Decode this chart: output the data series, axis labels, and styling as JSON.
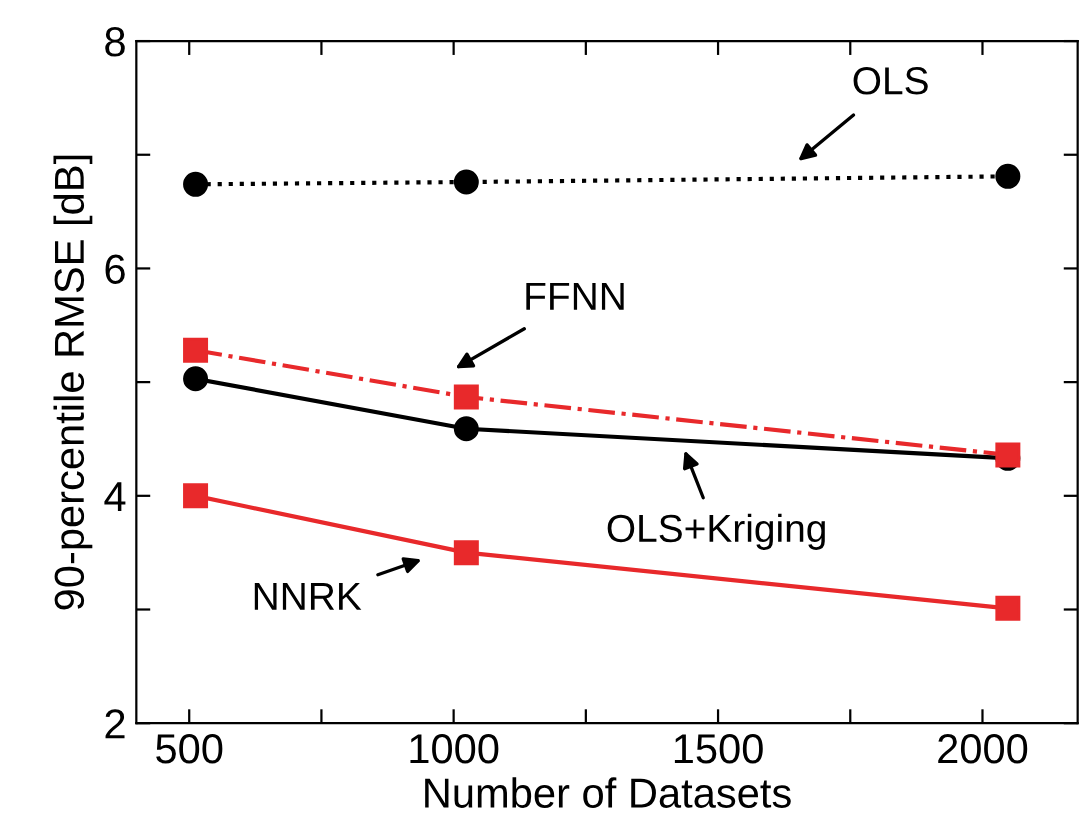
{
  "chart_data": {
    "type": "line",
    "xlabel": "Number of Datasets",
    "ylabel": "90-percentile RMSE [dB]",
    "xlim": [
      400,
      2180
    ],
    "xticks": [
      500,
      {
        "value": 750,
        "label": null
      },
      1000,
      {
        "value": 1250,
        "label": null
      },
      1500,
      {
        "value": 1750,
        "label": null
      },
      2000
    ],
    "ylim": [
      2,
      8
    ],
    "yticks": [
      2,
      {
        "value": 3,
        "label": null
      },
      4,
      {
        "value": 5,
        "label": null
      },
      6,
      {
        "value": 7,
        "label": null
      },
      8
    ],
    "grid": false,
    "legend": false,
    "series": [
      {
        "x": [
          512,
          1024,
          2048
        ],
        "values": [
          6.74,
          6.76,
          6.81
        ],
        "color": "#000000",
        "marker": "circle",
        "line_style": "dotted"
      },
      {
        "x": [
          512,
          1024,
          2048
        ],
        "values": [
          5.28,
          4.87,
          4.36
        ],
        "color": "#e8292b",
        "marker": "square",
        "line_style": "dashdot"
      },
      {
        "x": [
          512,
          1024,
          2048
        ],
        "values": [
          5.03,
          4.59,
          4.33
        ],
        "color": "#000000",
        "marker": "circle",
        "line_style": "solid"
      },
      {
        "x": [
          512,
          1024,
          2048
        ],
        "values": [
          4.0,
          3.5,
          3.01
        ],
        "color": "#e8292b",
        "marker": "square",
        "line_style": "solid"
      }
    ],
    "annotations": [
      {
        "text": "OLS",
        "x": 1611,
        "y": 6.79
      },
      "FFNN",
      {
        "text": "OLS+Kriging",
        "x": 1429,
        "y": 4.49
      },
      "NNRK"
    ]
  }
}
